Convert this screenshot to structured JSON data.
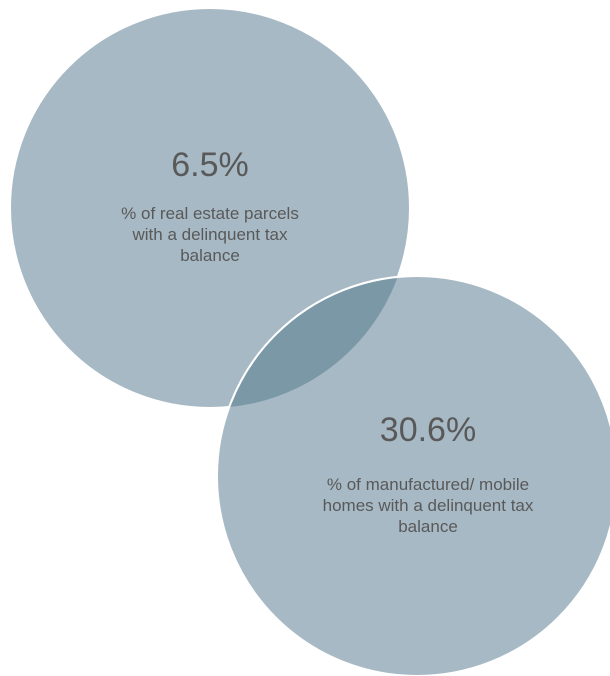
{
  "diagram": {
    "circles": [
      {
        "id": "real-estate",
        "value": "6.5%",
        "description": "% of real estate parcels with a delinquent tax balance"
      },
      {
        "id": "mobile-homes",
        "value": "30.6%",
        "description": "% of manufactured/ mobile homes with a delinquent tax balance"
      }
    ],
    "colors": {
      "circle_fill": "#a7b9c4",
      "overlap_fill": "#7b98a6",
      "circle_stroke": "#ffffff",
      "text": "#595959"
    }
  }
}
